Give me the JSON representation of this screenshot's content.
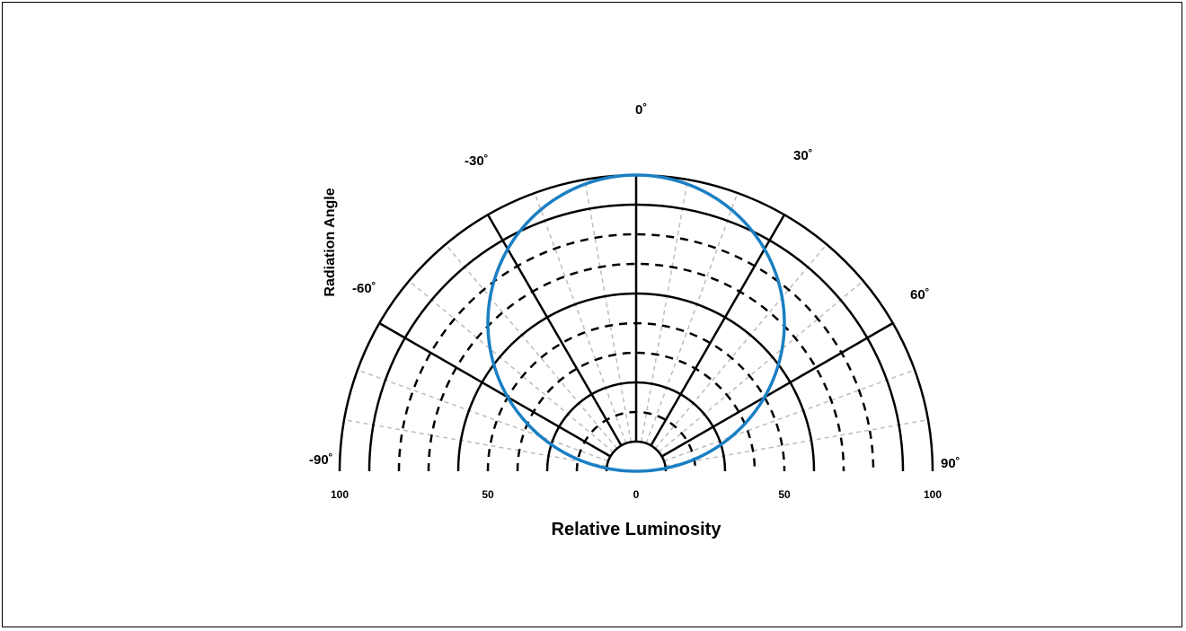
{
  "chart_data": {
    "type": "polar",
    "title": "",
    "xlabel": "Relative Luminosity",
    "ylabel": "Radiation Angle",
    "radial_range": [
      0,
      100
    ],
    "radial_ticks": [
      "100",
      "50",
      "0",
      "50",
      "100"
    ],
    "angle_labels": [
      "-90˚",
      "-60˚",
      "-30˚",
      "0˚",
      "30˚",
      "60˚",
      "90˚"
    ],
    "angle_values": [
      -90,
      -60,
      -30,
      0,
      30,
      60,
      90
    ],
    "grid": {
      "solid_circles": [
        10,
        30,
        60,
        90,
        100
      ],
      "dashed_circles": [
        20,
        40,
        50,
        70,
        80
      ],
      "major_spokes_deg": [
        -90,
        -60,
        -30,
        0,
        30,
        60,
        90
      ],
      "minor_spokes_step_deg": 10
    },
    "series": [
      {
        "color": "#1a7fc3",
        "angles": [
          -90,
          -80,
          -70,
          -60,
          -50,
          -40,
          -30,
          -20,
          -10,
          0,
          10,
          20,
          30,
          40,
          50,
          60,
          70,
          80,
          90
        ],
        "values": [
          0,
          17,
          34,
          50,
          64,
          77,
          87,
          94,
          98,
          100,
          98,
          94,
          87,
          77,
          64,
          50,
          34,
          17,
          0
        ]
      }
    ]
  }
}
